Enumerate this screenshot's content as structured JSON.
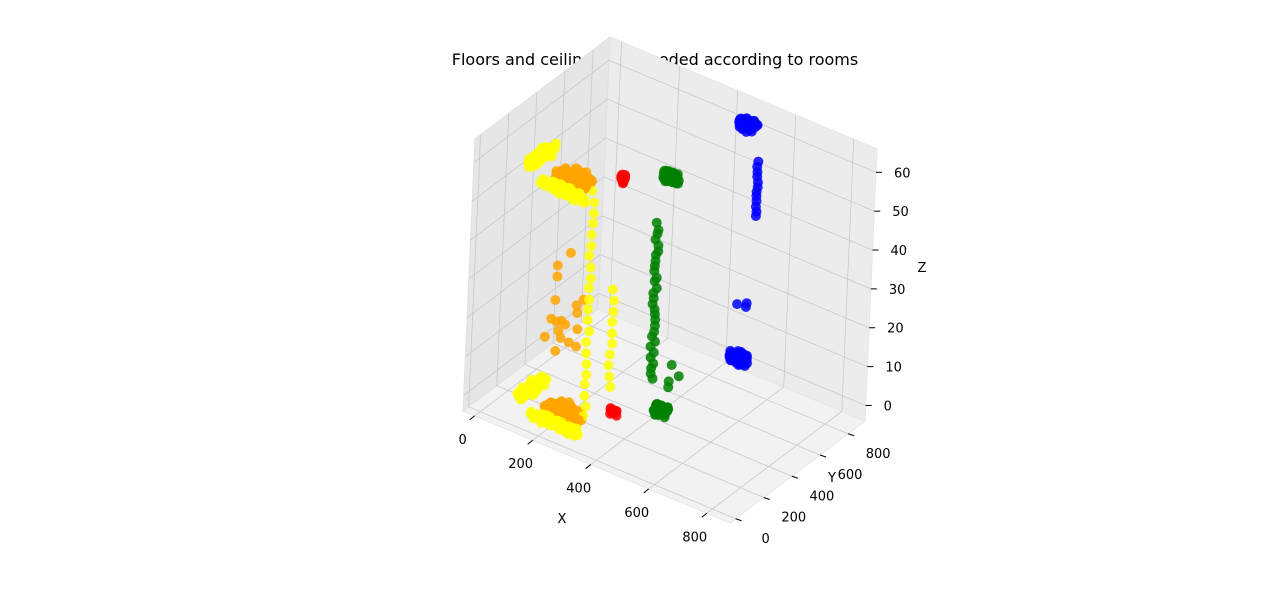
{
  "chart_data": {
    "type": "scatter",
    "projection": "3d",
    "title": "Floors and ceilings color-coded according to rooms",
    "xlabel": "X",
    "ylabel": "Y",
    "zlabel": "Z",
    "xlim": [
      -40,
      880
    ],
    "ylim": [
      -40,
      920
    ],
    "zlim": [
      -4,
      66
    ],
    "xticks": [
      0,
      200,
      400,
      600,
      800
    ],
    "yticks": [
      0,
      200,
      400,
      600,
      800
    ],
    "zticks": [
      0,
      10,
      20,
      30,
      40,
      50,
      60
    ],
    "grid": true,
    "colors": {
      "orange": "#ffa500",
      "yellow": "#ffff00",
      "red": "#ff0000",
      "green": "#008000",
      "blue": "#0000ff",
      "pane": "#f2f2f2",
      "grid": "#c8c8c8"
    },
    "clusters": [
      {
        "color": "orange",
        "shape": "blob",
        "center": [
          230,
          110,
          0
        ],
        "size": [
          120,
          120,
          2
        ],
        "count": 160
      },
      {
        "color": "orange",
        "shape": "blob",
        "center": [
          230,
          110,
          60
        ],
        "size": [
          120,
          120,
          2
        ],
        "count": 160
      },
      {
        "color": "orange",
        "shape": "scatter",
        "center": [
          220,
          110,
          25
        ],
        "size": [
          110,
          110,
          30
        ],
        "count": 18
      },
      {
        "color": "yellow",
        "shape": "blob",
        "center": [
          240,
          20,
          0
        ],
        "size": [
          170,
          30,
          2
        ],
        "count": 70
      },
      {
        "color": "yellow",
        "shape": "blob",
        "center": [
          240,
          20,
          60
        ],
        "size": [
          170,
          30,
          2
        ],
        "count": 70
      },
      {
        "color": "yellow",
        "shape": "blob",
        "center": [
          90,
          180,
          0
        ],
        "size": [
          40,
          200,
          2
        ],
        "count": 50
      },
      {
        "color": "yellow",
        "shape": "blob",
        "center": [
          90,
          180,
          60
        ],
        "size": [
          40,
          200,
          2
        ],
        "count": 50
      },
      {
        "color": "yellow",
        "shape": "column",
        "center": [
          300,
          110,
          30
        ],
        "size": [
          10,
          10,
          58
        ],
        "count": 22
      },
      {
        "color": "yellow",
        "shape": "column",
        "center": [
          340,
          200,
          20
        ],
        "size": [
          10,
          10,
          25
        ],
        "count": 10
      },
      {
        "color": "red",
        "shape": "blob",
        "center": [
          340,
          240,
          0
        ],
        "size": [
          25,
          25,
          2
        ],
        "count": 12
      },
      {
        "color": "red",
        "shape": "blob",
        "center": [
          340,
          240,
          60
        ],
        "size": [
          25,
          25,
          2
        ],
        "count": 12
      },
      {
        "color": "green",
        "shape": "blob",
        "center": [
          440,
          370,
          0
        ],
        "size": [
          50,
          50,
          2
        ],
        "count": 55
      },
      {
        "color": "green",
        "shape": "blob",
        "center": [
          440,
          370,
          60
        ],
        "size": [
          50,
          50,
          2
        ],
        "count": 55
      },
      {
        "color": "green",
        "shape": "column",
        "center": [
          415,
          345,
          28
        ],
        "size": [
          12,
          12,
          40
        ],
        "count": 30
      },
      {
        "color": "green",
        "shape": "scatter",
        "center": [
          460,
          390,
          8
        ],
        "size": [
          60,
          60,
          8
        ],
        "count": 4
      },
      {
        "color": "blue",
        "shape": "blob",
        "center": [
          460,
          880,
          0
        ],
        "size": [
          60,
          60,
          2
        ],
        "count": 55
      },
      {
        "color": "blue",
        "shape": "blob",
        "center": [
          460,
          880,
          60
        ],
        "size": [
          60,
          60,
          2
        ],
        "count": 55
      },
      {
        "color": "blue",
        "shape": "column",
        "center": [
          490,
          900,
          44
        ],
        "size": [
          6,
          6,
          14
        ],
        "count": 12
      },
      {
        "color": "blue",
        "shape": "scatter",
        "center": [
          470,
          860,
          15
        ],
        "size": [
          60,
          60,
          2
        ],
        "count": 3
      }
    ]
  }
}
